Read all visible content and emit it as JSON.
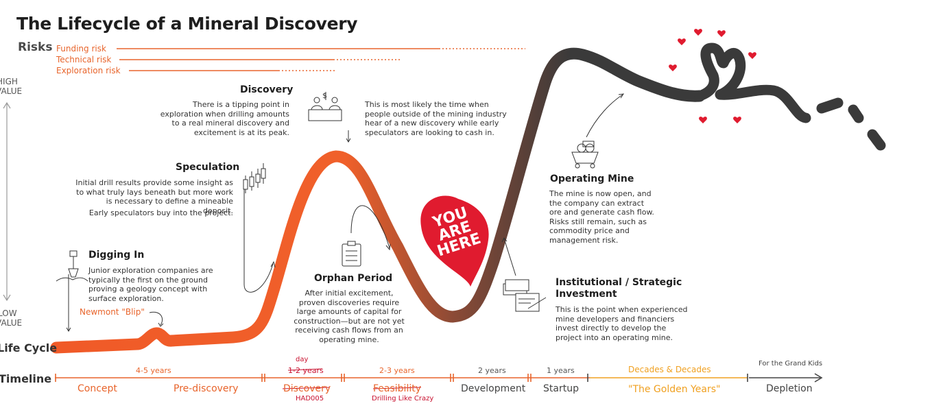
{
  "title": "The Lifecycle of a Mineral Discovery",
  "risks": {
    "label": "Risks",
    "items": [
      "Funding risk",
      "Technical risk",
      "Exploration risk"
    ]
  },
  "value_axis": {
    "high": [
      "HIGH",
      "VALUE"
    ],
    "low": [
      "LOW",
      "VALUE"
    ]
  },
  "stages": {
    "discovery": {
      "title": "Discovery",
      "text": "There is a tipping point in exploration when drilling amounts to a real mineral discovery and excitement is at its peak.",
      "aside": "This is most likely the time when people outside of the mining industry hear of a new discovery while early speculators are looking to cash in."
    },
    "speculation": {
      "title": "Speculation",
      "text": "Initial drill results provide some insight as to what truly lays beneath but more work is necessary to define a mineable deposit.",
      "text2": "Early speculators buy into the project."
    },
    "digging_in": {
      "title": "Digging In",
      "text": "Junior exploration companies are typically the first on the ground proving a geology concept with surface exploration."
    },
    "orphan": {
      "title": "Orphan Period",
      "text": "After initial excitement, proven discoveries require large amounts of capital for construction—but are not yet receiving cash flows from an operating mine."
    },
    "operating": {
      "title": "Operating Mine",
      "text": "The mine is now open, and the company can extract ore and generate cash flow. Risks still remain, such as commodity price and management risk."
    },
    "institutional": {
      "title": "Institutional / Strategic Investment",
      "text": "This is the point when experienced mine developers and financiers invest directly to develop the project into an operating mine."
    }
  },
  "newmont": "Newmont \"Blip\"",
  "you_are_here": [
    "YOU",
    "ARE",
    "HERE"
  ],
  "life_cycle_label": "Life Cycle",
  "timeline_label": "Timeline",
  "timeline": {
    "durations": [
      "4-5 years",
      "1-2 years",
      "2-3 years",
      "2 years",
      "1 years",
      "Decades & Decades",
      "For the Grand Kids"
    ],
    "phases": [
      "Concept",
      "Pre-discovery",
      "Discovery",
      "Feasibility",
      "Development",
      "Startup",
      "\"The Golden Years\"",
      "Depletion"
    ],
    "annotations": {
      "day": "day",
      "had005": "HAD005",
      "drilling": "Drilling Like Crazy"
    }
  },
  "colors": {
    "orange": "#e8642b",
    "dark": "#3a3a3a",
    "red": "#e01b2f",
    "gold": "#f0a020"
  }
}
